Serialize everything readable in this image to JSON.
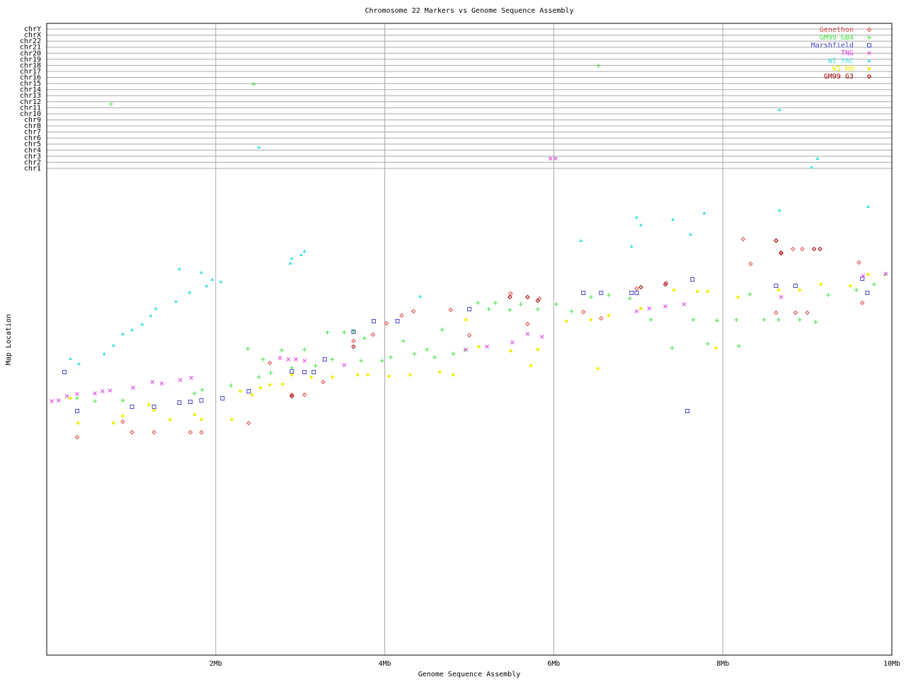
{
  "chart_data": {
    "type": "scatter",
    "title": "Chromosome 22 Markers vs Genome Sequence Assembly",
    "x_label": "Genome Sequence Assembly",
    "y_label": "Map Location",
    "xlim": [
      0,
      10
    ],
    "xticks": [
      {
        "value": 2,
        "label": "2Mb"
      },
      {
        "value": 4,
        "label": "4Mb"
      },
      {
        "value": 6,
        "label": "6Mb"
      },
      {
        "value": 8,
        "label": "8Mb"
      },
      {
        "value": 10,
        "label": "10Mb"
      }
    ],
    "ylim": [
      0,
      893
    ],
    "yticks": [
      {
        "value": 688,
        "label": "chr1"
      },
      {
        "value": 696.6,
        "label": "chr2"
      },
      {
        "value": 705.1,
        "label": "chr3"
      },
      {
        "value": 713.7,
        "label": "chr4"
      },
      {
        "value": 722.3,
        "label": "chr5"
      },
      {
        "value": 730.8,
        "label": "chr6"
      },
      {
        "value": 739.4,
        "label": "chr7"
      },
      {
        "value": 748,
        "label": "chr8"
      },
      {
        "value": 756.5,
        "label": "chr9"
      },
      {
        "value": 765.1,
        "label": "chr10"
      },
      {
        "value": 773.7,
        "label": "chr11"
      },
      {
        "value": 782.2,
        "label": "chr12"
      },
      {
        "value": 790.8,
        "label": "chr13"
      },
      {
        "value": 799.3,
        "label": "chr14"
      },
      {
        "value": 807.9,
        "label": "chr15"
      },
      {
        "value": 816.5,
        "label": "chr16"
      },
      {
        "value": 825,
        "label": "chr17"
      },
      {
        "value": 833.6,
        "label": "chr18"
      },
      {
        "value": 842.2,
        "label": "chr19"
      },
      {
        "value": 850.7,
        "label": "chr20"
      },
      {
        "value": 859.3,
        "label": "chr21"
      },
      {
        "value": 867.9,
        "label": "chr22"
      },
      {
        "value": 876.4,
        "label": "chrX"
      },
      {
        "value": 885,
        "label": "chrY"
      }
    ],
    "grid": true,
    "legend": "upper right",
    "series": [
      {
        "name": "Genethon",
        "color": "#e04848",
        "marker": "diamond",
        "x": [
          0.36,
          1.01,
          1.27,
          1.7,
          1.83,
          2.39,
          0.9,
          2.64,
          2.9,
          3.05,
          3.27,
          3.63,
          3.86,
          4.02,
          4.2,
          4.34,
          4.78,
          5.0,
          5.49,
          5.69,
          5.83,
          6.35,
          6.56,
          6.98,
          7.33,
          8.24,
          8.33,
          8.63,
          8.69,
          8.83,
          8.94,
          9.0,
          8.86,
          8.63,
          9.61,
          9.65
        ],
        "y": [
          308,
          315,
          315,
          315,
          315,
          328,
          330,
          413,
          368,
          368,
          386,
          444,
          453,
          469,
          480,
          486,
          488,
          452,
          511,
          468,
          504,
          485,
          476,
          518,
          526,
          588,
          553,
          586,
          569,
          574,
          574,
          484,
          484,
          484,
          555,
          498
        ]
      },
      {
        "name": "GM99 GB4",
        "color": "#40e040",
        "marker": "plus",
        "x": [
          0.76,
          2.45,
          6.53,
          0.36,
          0.57,
          0.9,
          1.75,
          1.84,
          2.18,
          2.38,
          2.51,
          2.56,
          2.65,
          2.78,
          2.9,
          3.05,
          3.18,
          3.32,
          3.38,
          3.52,
          3.63,
          3.72,
          3.76,
          3.97,
          4.07,
          4.22,
          4.35,
          4.5,
          4.59,
          4.68,
          4.81,
          4.95,
          5.1,
          5.23,
          5.31,
          5.48,
          5.61,
          5.81,
          6.03,
          6.21,
          6.44,
          6.65,
          6.9,
          7.15,
          7.4,
          7.65,
          7.82,
          7.93,
          8.19,
          8.16,
          8.32,
          8.49,
          8.66,
          8.91,
          9.1,
          9.25,
          9.58,
          9.79,
          9.92
        ],
        "y": [
          779,
          807,
          833,
          363,
          359,
          360,
          370,
          375,
          381,
          433,
          393,
          418,
          399,
          431,
          406,
          432,
          409,
          456,
          418,
          456,
          458,
          416,
          448,
          416,
          421,
          444,
          426,
          432,
          421,
          460,
          426,
          431,
          498,
          489,
          498,
          488,
          496,
          489,
          496,
          486,
          506,
          509,
          504,
          474,
          434,
          474,
          440,
          473,
          437,
          474,
          510,
          474,
          474,
          474,
          471,
          509,
          516,
          524,
          538
        ]
      },
      {
        "name": "Marshfield",
        "color": "#4848c8",
        "marker": "square",
        "x": [
          0.21,
          0.36,
          1.01,
          1.27,
          1.57,
          1.7,
          1.83,
          2.08,
          2.39,
          2.9,
          3.05,
          3.16,
          3.29,
          3.63,
          3.87,
          4.15,
          5.0,
          6.35,
          6.56,
          6.92,
          6.98,
          7.58,
          7.64,
          8.63,
          8.86,
          9.65,
          9.71
        ],
        "y": [
          400,
          345,
          351,
          351,
          357,
          358,
          360,
          363,
          373,
          401,
          400,
          400,
          418,
          457,
          472,
          472,
          489,
          512,
          512,
          512,
          512,
          345,
          531,
          522,
          522,
          532,
          512
        ]
      },
      {
        "name": "TNG",
        "color": "#e040e0",
        "marker": "cross",
        "x": [
          0.06,
          0.14,
          0.24,
          0.36,
          0.57,
          0.66,
          0.75,
          1.02,
          1.25,
          1.36,
          1.58,
          1.71,
          2.76,
          2.86,
          2.95,
          3.05,
          3.52,
          4.96,
          5.21,
          5.51,
          5.69,
          5.86,
          5.96,
          6.02,
          6.98,
          7.13,
          7.32,
          7.54,
          8.69,
          9.66,
          9.93
        ],
        "y": [
          359,
          360,
          366,
          369,
          370,
          373,
          374,
          378,
          386,
          384,
          389,
          392,
          420,
          418,
          418,
          416,
          410,
          432,
          436,
          442,
          454,
          450,
          702,
          702,
          486,
          490,
          493,
          496,
          506,
          536,
          539
        ]
      },
      {
        "name": "WI YAC",
        "color": "#40e0e0",
        "marker": "triangle",
        "x": [
          0.28,
          0.38,
          0.68,
          0.79,
          0.9,
          1.01,
          1.13,
          1.23,
          1.29,
          1.53,
          1.57,
          1.69,
          1.83,
          1.89,
          1.96,
          2.06,
          2.51,
          2.88,
          2.9,
          3.01,
          3.05,
          4.42,
          6.32,
          6.92,
          6.98,
          7.03,
          7.41,
          7.62,
          7.78,
          8.67,
          8.67,
          9.05,
          9.12,
          9.72
        ],
        "y": [
          419,
          412,
          426,
          438,
          454,
          460,
          468,
          480,
          490,
          500,
          546,
          513,
          541,
          522,
          531,
          528,
          718,
          554,
          561,
          566,
          571,
          507,
          586,
          578,
          619,
          608,
          616,
          595,
          625,
          629,
          771,
          690,
          702,
          634
        ]
      },
      {
        "name": "WI RH",
        "color": "#f0f000",
        "marker": "circle",
        "x": [
          0.28,
          0.37,
          0.79,
          0.9,
          1.21,
          1.27,
          1.46,
          1.75,
          1.83,
          2.19,
          2.29,
          2.43,
          2.53,
          2.64,
          2.79,
          2.9,
          3.13,
          3.38,
          3.68,
          3.8,
          4.05,
          4.3,
          4.65,
          4.81,
          4.96,
          5.11,
          5.49,
          5.73,
          5.81,
          6.15,
          6.44,
          6.52,
          6.65,
          7.03,
          7.42,
          7.7,
          7.82,
          7.92,
          8.18,
          8.66,
          8.91,
          9.16,
          9.51,
          9.72
        ],
        "y": [
          363,
          328,
          328,
          338,
          354,
          346,
          333,
          340,
          333,
          333,
          373,
          368,
          378,
          382,
          383,
          396,
          393,
          393,
          396,
          396,
          394,
          396,
          400,
          396,
          474,
          436,
          430,
          409,
          432,
          472,
          474,
          405,
          480,
          490,
          516,
          514,
          514,
          434,
          506,
          516,
          516,
          524,
          522,
          538
        ]
      },
      {
        "name": "GM99 G3",
        "color": "#a00000",
        "marker": "diamond",
        "x": [
          2.9,
          3.63,
          5.48,
          5.69,
          5.81,
          7.03,
          7.32,
          8.63,
          8.69,
          9.08,
          9.15
        ],
        "y": [
          366,
          436,
          506,
          506,
          501,
          520,
          524,
          586,
          568,
          574,
          574
        ]
      }
    ]
  }
}
